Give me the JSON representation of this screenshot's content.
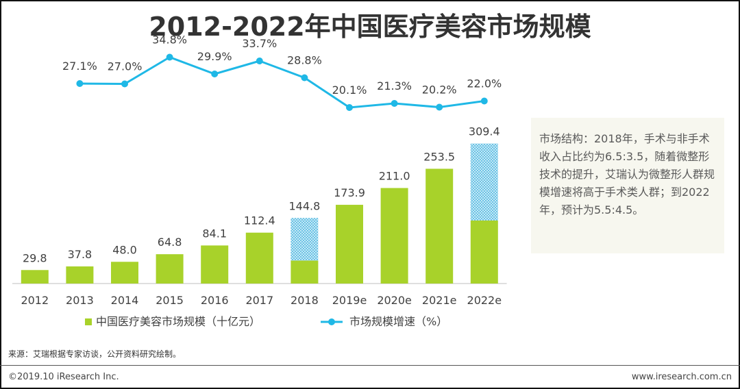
{
  "title": "2012-2022年中国医疗美容市场规模",
  "chart_data": {
    "type": "bar",
    "categories": [
      "2012",
      "2013",
      "2014",
      "2015",
      "2016",
      "2017",
      "2018",
      "2019e",
      "2020e",
      "2021e",
      "2022e"
    ],
    "series": [
      {
        "name": "中国医疗美容市场规模（十亿元）",
        "values": [
          29.8,
          37.8,
          48.0,
          64.8,
          84.1,
          112.4,
          144.8,
          173.9,
          211.0,
          253.5,
          309.4
        ],
        "color": "#a8d22a"
      },
      {
        "name": "市场规模增速（%）",
        "type": "line",
        "values": [
          null,
          27.1,
          27.0,
          34.8,
          29.9,
          33.7,
          28.8,
          20.1,
          21.3,
          20.2,
          22.0
        ],
        "color": "#1fb8e6"
      }
    ],
    "value_labels": [
      "29.8",
      "37.8",
      "48.0",
      "64.8",
      "84.1",
      "112.4",
      "144.8",
      "173.9",
      "211.0",
      "253.5",
      "309.4"
    ],
    "growth_labels": [
      "",
      "27.1%",
      "27.0%",
      "34.8%",
      "29.9%",
      "33.7%",
      "28.8%",
      "20.1%",
      "21.3%",
      "20.2%",
      "22.0%"
    ],
    "split_bars": [
      {
        "index": 6,
        "surgical_ratio": 6.5,
        "non_surgical_ratio": 3.5
      },
      {
        "index": 10,
        "surgical_ratio": 5.5,
        "non_surgical_ratio": 4.5
      }
    ],
    "ylim": [
      0,
      340
    ],
    "growth_ylim": [
      15,
      40
    ],
    "legend": [
      "中国医疗美容市场规模（十亿元）",
      "市场规模增速（%）"
    ],
    "legend_position": "bottom"
  },
  "colors": {
    "bar": "#a8d22a",
    "line": "#1fb8e6",
    "hatch_bg": "#c6e9f6",
    "hatch_dot": "#2aa7da",
    "axis": "#bfbfbf",
    "text": "#404040"
  },
  "annotation": "市场结构：2018年，手术与非手术收入占比约为6.5:3.5，随着微整形技术的提升，艾瑞认为微整形人群规模增速将高于手术类人群；到2022年，预计为5.5:4.5。",
  "source": "来源：艾瑞根据专家访谈，公开资料研究绘制。",
  "footer": {
    "left": "©2019.10 iResearch Inc.",
    "right": "www.iresearch.com.cn"
  }
}
